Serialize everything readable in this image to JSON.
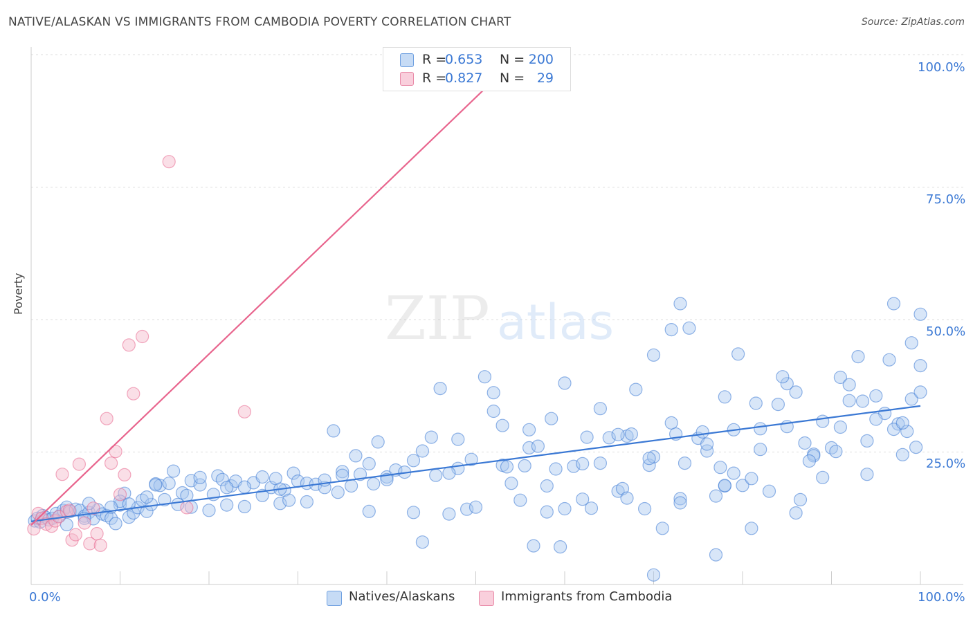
{
  "header": {
    "title": "NATIVE/ALASKAN VS IMMIGRANTS FROM CAMBODIA POVERTY CORRELATION CHART",
    "source": "Source: ZipAtlas.com"
  },
  "watermark": {
    "zip": "ZIP",
    "atlas": "atlas"
  },
  "legend": {
    "rows": [
      {
        "r_label": "R =",
        "r_value": "0.653",
        "n_label": "N =",
        "n_value": "200",
        "color": "#a9c8f0"
      },
      {
        "r_label": "R =",
        "r_value": "0.827",
        "n_label": "N =",
        "n_value": "29",
        "color": "#f5b7ca"
      }
    ]
  },
  "bottom_legend": [
    {
      "label": "Natives/Alaskans",
      "color": "#a9c8f0"
    },
    {
      "label": "Immigrants from Cambodia",
      "color": "#f5b7ca"
    }
  ],
  "axes": {
    "ylabel": "Poverty",
    "x_min_label": "0.0%",
    "x_max_label": "100.0%",
    "y_ticks": [
      "100.0%",
      "75.0%",
      "50.0%",
      "25.0%"
    ]
  },
  "chart_data": {
    "type": "scatter",
    "title": "NATIVE/ALASKAN VS IMMIGRANTS FROM CAMBODIA POVERTY CORRELATION CHART",
    "xlabel": "",
    "ylabel": "Poverty",
    "xlim": [
      0,
      100
    ],
    "ylim": [
      0,
      100
    ],
    "y_tick_values": [
      25,
      50,
      75,
      100
    ],
    "grid": true,
    "legend_position": "top-center",
    "series": [
      {
        "name": "Natives/Alaskans",
        "color": "#3a78d4",
        "fill": "#a9c8f0",
        "trend": [
          [
            0,
            11.9
          ],
          [
            100,
            33.7
          ]
        ],
        "points": [
          [
            0.4,
            12
          ],
          [
            0.7,
            12.5
          ],
          [
            1,
            11.8
          ],
          [
            1.3,
            13
          ],
          [
            1.6,
            12.7
          ],
          [
            2,
            12.2
          ],
          [
            2.4,
            12.5
          ],
          [
            2.8,
            13.4
          ],
          [
            3.2,
            12.9
          ],
          [
            3.6,
            14
          ],
          [
            4,
            14.6
          ],
          [
            4.4,
            13.8
          ],
          [
            5,
            14.2
          ],
          [
            5.5,
            14
          ],
          [
            6,
            12.9
          ],
          [
            6.5,
            13.6
          ],
          [
            7,
            12.4
          ],
          [
            7.5,
            14.1
          ],
          [
            8,
            13.3
          ],
          [
            8.5,
            13
          ],
          [
            9,
            12.5
          ],
          [
            9.5,
            11.5
          ],
          [
            10,
            15
          ],
          [
            10.5,
            17.2
          ],
          [
            11,
            12.7
          ],
          [
            11.5,
            13.5
          ],
          [
            12,
            14.5
          ],
          [
            12.5,
            15.9
          ],
          [
            13,
            13.8
          ],
          [
            13.5,
            15.1
          ],
          [
            14,
            19
          ],
          [
            14.5,
            18.7
          ],
          [
            15,
            16
          ],
          [
            15.5,
            19.1
          ],
          [
            16,
            21.4
          ],
          [
            16.5,
            15.1
          ],
          [
            17,
            17.3
          ],
          [
            17.5,
            16.8
          ],
          [
            18,
            19.6
          ],
          [
            19,
            18.8
          ],
          [
            20,
            14
          ],
          [
            20.5,
            17
          ],
          [
            21,
            20.5
          ],
          [
            21.5,
            19.8
          ],
          [
            22,
            15
          ],
          [
            22.5,
            18.6
          ],
          [
            23,
            19.5
          ],
          [
            24,
            14.7
          ],
          [
            25,
            19.2
          ],
          [
            26,
            16.8
          ],
          [
            27,
            18.3
          ],
          [
            27.5,
            20
          ],
          [
            28,
            15.3
          ],
          [
            28.5,
            17.8
          ],
          [
            29,
            15.9
          ],
          [
            29.5,
            21
          ],
          [
            30,
            19.5
          ],
          [
            31,
            19.1
          ],
          [
            32,
            18.9
          ],
          [
            33,
            18.3
          ],
          [
            34,
            29
          ],
          [
            34.5,
            17.4
          ],
          [
            35,
            21.3
          ],
          [
            36,
            18.6
          ],
          [
            36.5,
            24.3
          ],
          [
            37,
            20.8
          ],
          [
            38,
            13.8
          ],
          [
            38.5,
            19
          ],
          [
            39,
            26.9
          ],
          [
            40,
            20.3
          ],
          [
            41,
            21.6
          ],
          [
            42,
            21.2
          ],
          [
            43,
            13.6
          ],
          [
            44,
            8
          ],
          [
            45,
            27.8
          ],
          [
            45.5,
            20.6
          ],
          [
            46,
            37
          ],
          [
            47,
            13.3
          ],
          [
            48,
            21.9
          ],
          [
            49,
            14.2
          ],
          [
            49.5,
            23.6
          ],
          [
            50,
            14.6
          ],
          [
            51,
            39.2
          ],
          [
            52,
            32.7
          ],
          [
            53,
            22.5
          ],
          [
            53.5,
            22.2
          ],
          [
            54,
            19.1
          ],
          [
            55,
            15.9
          ],
          [
            55.5,
            22.4
          ],
          [
            56,
            25.8
          ],
          [
            57,
            26.1
          ],
          [
            58,
            13.7
          ],
          [
            58.5,
            31.3
          ],
          [
            59,
            21.8
          ],
          [
            60,
            14.3
          ],
          [
            61,
            22.3
          ],
          [
            62,
            16.1
          ],
          [
            62.5,
            27.8
          ],
          [
            63,
            14.4
          ],
          [
            64,
            22.9
          ],
          [
            65,
            27.7
          ],
          [
            66,
            17.6
          ],
          [
            66.5,
            18.1
          ],
          [
            67,
            28
          ],
          [
            67.5,
            28.4
          ],
          [
            68,
            36.8
          ],
          [
            69,
            14.3
          ],
          [
            69.5,
            22.5
          ],
          [
            70,
            43.3
          ],
          [
            71,
            10.6
          ],
          [
            72,
            30.5
          ],
          [
            73,
            16.2
          ],
          [
            73.5,
            22.9
          ],
          [
            74,
            48.4
          ],
          [
            75,
            27.6
          ],
          [
            76,
            25.2
          ],
          [
            77,
            16.7
          ],
          [
            77.5,
            22.1
          ],
          [
            78,
            18.6
          ],
          [
            79,
            29.2
          ],
          [
            79.5,
            43.5
          ],
          [
            80,
            18.7
          ],
          [
            81,
            10.6
          ],
          [
            82,
            29.4
          ],
          [
            83,
            17.6
          ],
          [
            84,
            34
          ],
          [
            85,
            37.9
          ],
          [
            86,
            13.5
          ],
          [
            86.5,
            16
          ],
          [
            87,
            26.7
          ],
          [
            88,
            24.6
          ],
          [
            89,
            20.2
          ],
          [
            90,
            25.8
          ],
          [
            91,
            39.1
          ],
          [
            92,
            34.7
          ],
          [
            93,
            43
          ],
          [
            94,
            20.8
          ],
          [
            95,
            35.6
          ],
          [
            96,
            32.3
          ],
          [
            97,
            53
          ],
          [
            97.5,
            30.3
          ],
          [
            98,
            24.5
          ],
          [
            98.5,
            28.9
          ],
          [
            99,
            35
          ],
          [
            99.5,
            25.9
          ],
          [
            100,
            51
          ],
          [
            4,
            11.3
          ],
          [
            6,
            12.5
          ],
          [
            10,
            15.7
          ],
          [
            13,
            16.5
          ],
          [
            18,
            14.6
          ],
          [
            22,
            18.3
          ],
          [
            26,
            20.3
          ],
          [
            31,
            15.6
          ],
          [
            35,
            20.6
          ],
          [
            40,
            19.8
          ],
          [
            44,
            25.2
          ],
          [
            47,
            21
          ],
          [
            52,
            36.2
          ],
          [
            56,
            29.2
          ],
          [
            60,
            38
          ],
          [
            64,
            33.2
          ],
          [
            67,
            16.3
          ],
          [
            70,
            24.1
          ],
          [
            73,
            15.4
          ],
          [
            76,
            26.5
          ],
          [
            79,
            21
          ],
          [
            82,
            25.5
          ],
          [
            85,
            29.8
          ],
          [
            88,
            24.3
          ],
          [
            91,
            29.7
          ],
          [
            94,
            27.1
          ],
          [
            97,
            29.3
          ],
          [
            100,
            36.3
          ],
          [
            6.5,
            15.3
          ],
          [
            9,
            14.6
          ],
          [
            11,
            15.2
          ],
          [
            14,
            18.8
          ],
          [
            19,
            20.2
          ],
          [
            24,
            18.4
          ],
          [
            28,
            18
          ],
          [
            33,
            19.7
          ],
          [
            38,
            22.8
          ],
          [
            43,
            23.4
          ],
          [
            48,
            27.4
          ],
          [
            53,
            30
          ],
          [
            58,
            18.6
          ],
          [
            62,
            22.8
          ],
          [
            66,
            28.3
          ],
          [
            69.5,
            23.8
          ],
          [
            72.5,
            28.4
          ],
          [
            75.5,
            28.8
          ],
          [
            78,
            35.4
          ],
          [
            81.5,
            34.2
          ],
          [
            84.5,
            39.2
          ],
          [
            87.5,
            23.3
          ],
          [
            90.5,
            25.1
          ],
          [
            93.5,
            34.6
          ],
          [
            96.5,
            42.4
          ],
          [
            99,
            45.6
          ],
          [
            77,
            5.6
          ],
          [
            70,
            1.8
          ],
          [
            56.5,
            7.3
          ],
          [
            59.5,
            7.1
          ],
          [
            72,
            48.1
          ],
          [
            73,
            53
          ],
          [
            78,
            18.7
          ],
          [
            81,
            20
          ],
          [
            86,
            36.3
          ],
          [
            89,
            30.8
          ],
          [
            92,
            37.7
          ],
          [
            95,
            31.2
          ],
          [
            98,
            30.5
          ],
          [
            100,
            41.3
          ]
        ]
      },
      {
        "name": "Immigrants from Cambodia",
        "color": "#e8648d",
        "fill": "#f5b7ca",
        "trend": [
          [
            0,
            11.2
          ],
          [
            55,
            100
          ]
        ],
        "points": [
          [
            0.3,
            10.5
          ],
          [
            0.8,
            13.4
          ],
          [
            1.2,
            12.5
          ],
          [
            1.7,
            11.4
          ],
          [
            2.3,
            11
          ],
          [
            2.7,
            12
          ],
          [
            3.1,
            12.8
          ],
          [
            3.5,
            20.8
          ],
          [
            4,
            13.8
          ],
          [
            4.3,
            14
          ],
          [
            4.6,
            8.4
          ],
          [
            5,
            9.4
          ],
          [
            5.4,
            22.7
          ],
          [
            6,
            11.6
          ],
          [
            6.6,
            7.7
          ],
          [
            7,
            14.4
          ],
          [
            7.4,
            9.6
          ],
          [
            7.8,
            7.4
          ],
          [
            8.5,
            31.3
          ],
          [
            9,
            22.9
          ],
          [
            9.5,
            25.1
          ],
          [
            10,
            17
          ],
          [
            10.5,
            20.7
          ],
          [
            11,
            45.2
          ],
          [
            11.5,
            36
          ],
          [
            12.5,
            46.8
          ],
          [
            15.5,
            79.8
          ],
          [
            17.5,
            14.5
          ],
          [
            24,
            32.6
          ]
        ]
      }
    ]
  }
}
